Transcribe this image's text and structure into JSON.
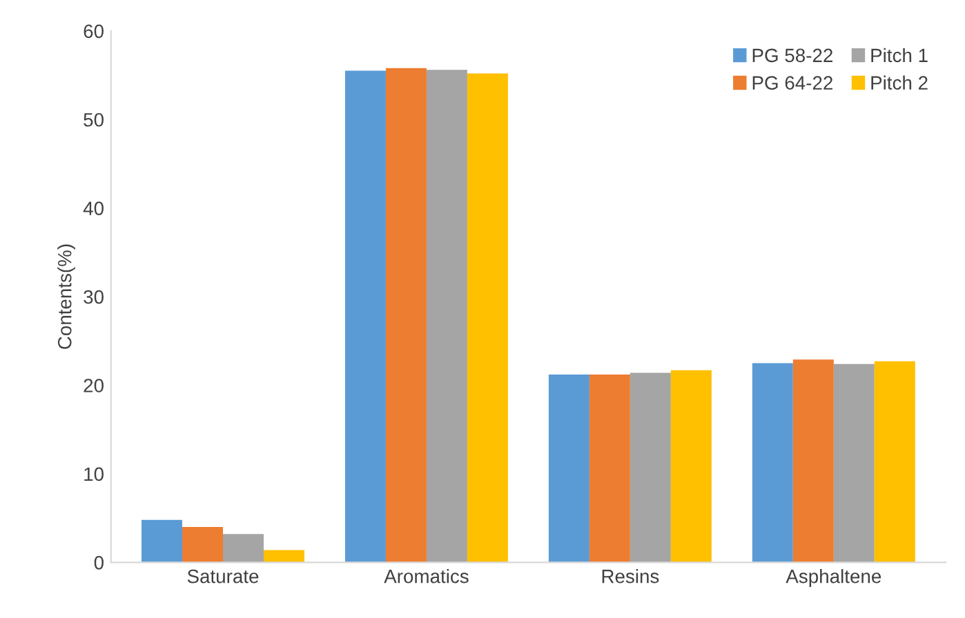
{
  "chart_data": {
    "type": "bar",
    "ylabel": "Contents(%)",
    "categories": [
      "Saturate",
      "Aromatics",
      "Resins",
      "Asphaltene"
    ],
    "series": [
      {
        "name": "PG 58-22",
        "color": "#5b9bd5",
        "values": [
          4.8,
          55.5,
          21.2,
          22.5
        ]
      },
      {
        "name": "PG 64-22",
        "color": "#ed7d31",
        "values": [
          4.0,
          55.8,
          21.2,
          22.9
        ]
      },
      {
        "name": "Pitch 1",
        "color": "#a5a5a5",
        "values": [
          3.2,
          55.6,
          21.4,
          22.4
        ]
      },
      {
        "name": "Pitch 2",
        "color": "#ffc000",
        "values": [
          1.4,
          55.2,
          21.7,
          22.7
        ]
      }
    ],
    "ylim": [
      0,
      60
    ],
    "yticks": [
      0,
      10,
      20,
      30,
      40,
      50,
      60
    ],
    "grid": false,
    "legend": "top right"
  }
}
